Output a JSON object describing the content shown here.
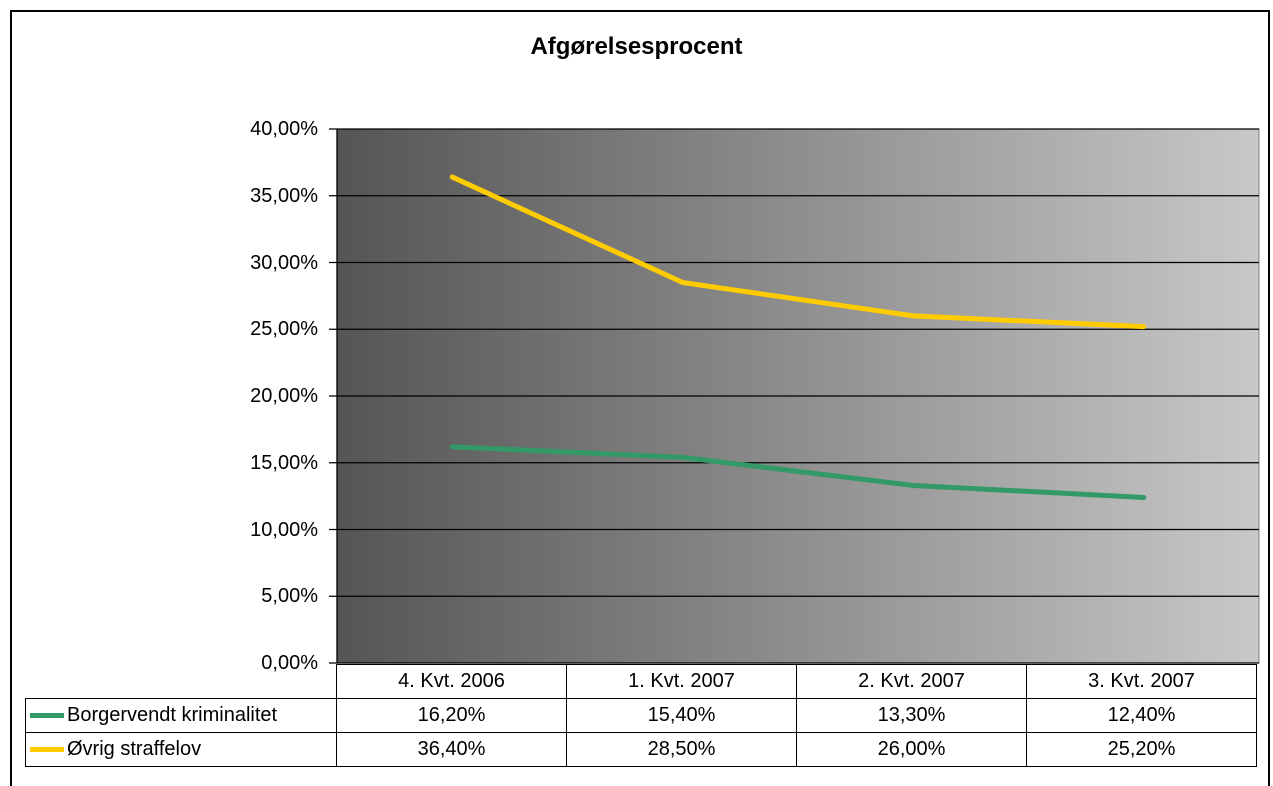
{
  "chart_data": {
    "type": "line",
    "title": "Afgørelsesprocent",
    "categories": [
      "4. Kvt. 2006",
      "1. Kvt. 2007",
      "2. Kvt. 2007",
      "3. Kvt. 2007"
    ],
    "y_ticks": [
      "0,00%",
      "5,00%",
      "10,00%",
      "15,00%",
      "20,00%",
      "25,00%",
      "30,00%",
      "35,00%",
      "40,00%"
    ],
    "ylim": [
      0,
      40
    ],
    "grid": true,
    "legend": "table",
    "series": [
      {
        "name": "Borgervendt kriminalitet",
        "values": [
          16.2,
          15.4,
          13.3,
          12.4
        ],
        "labels": [
          "16,20%",
          "15,40%",
          "13,30%",
          "12,40%"
        ],
        "color": "#339966"
      },
      {
        "name": "Øvrig straffelov",
        "values": [
          36.4,
          28.5,
          26.0,
          25.2
        ],
        "labels": [
          "36,40%",
          "28,50%",
          "26,00%",
          "25,20%"
        ],
        "color": "#FFCC00"
      }
    ]
  }
}
